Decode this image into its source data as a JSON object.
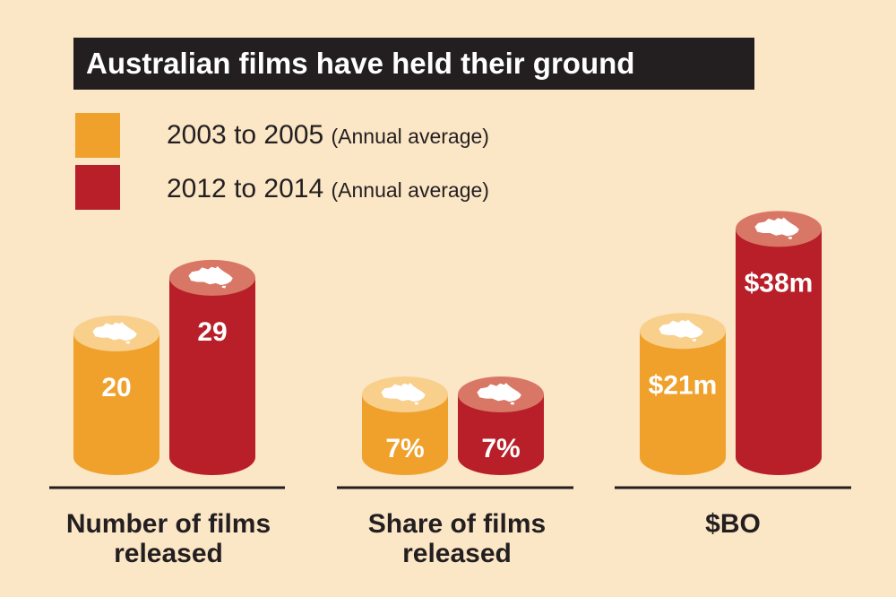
{
  "colors": {
    "background": "#fbe6c6",
    "series_2003": "#f0a12c",
    "series_2012": "#b81f28",
    "title_bg": "#231f20"
  },
  "chart_data": {
    "type": "bar",
    "title": "Australian films have held their ground",
    "series": [
      {
        "name": "2003 to 2005",
        "note": "(Annual average)",
        "color": "#f0a12c"
      },
      {
        "name": "2012 to 2014",
        "note": "(Annual average)",
        "color": "#b81f28"
      }
    ],
    "groups": [
      {
        "label_line1": "Number of films",
        "label_line2": "released",
        "values": [
          20,
          29
        ],
        "labels": [
          "20",
          "29"
        ]
      },
      {
        "label_line1": "Share of films",
        "label_line2": "released",
        "values": [
          7,
          7
        ],
        "labels": [
          "7%",
          "7%"
        ]
      },
      {
        "label_line1": "$BO",
        "label_line2": "",
        "values": [
          21,
          38
        ],
        "labels": [
          "$21m",
          "$38m"
        ]
      }
    ]
  }
}
